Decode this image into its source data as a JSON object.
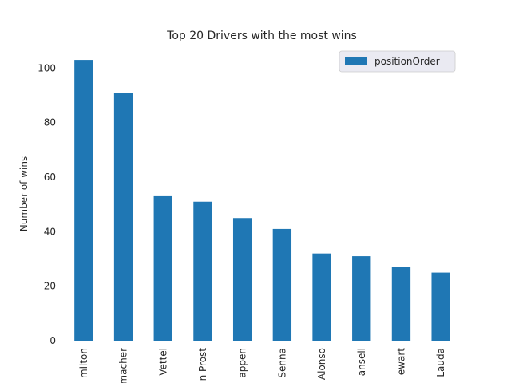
{
  "chart_data": {
    "type": "bar",
    "title": "Top 20 Drivers with the most wins",
    "xlabel": "",
    "ylabel": "Number of wins",
    "categories": [
      "milton",
      "macher",
      "Vettel",
      "n Prost",
      "appen",
      "Senna",
      "Alonso",
      "ansell",
      "ewart",
      "Lauda"
    ],
    "series": [
      {
        "name": "positionOrder",
        "values": [
          103,
          91,
          53,
          51,
          45,
          41,
          32,
          31,
          27,
          25
        ],
        "color": "#1f77b4"
      }
    ],
    "yticks": [
      "0",
      "20",
      "40",
      "60",
      "80",
      "100"
    ],
    "ylim": [
      0,
      108
    ],
    "grid": false,
    "legend": {
      "position": "top-right"
    },
    "background": "#ffffff"
  }
}
